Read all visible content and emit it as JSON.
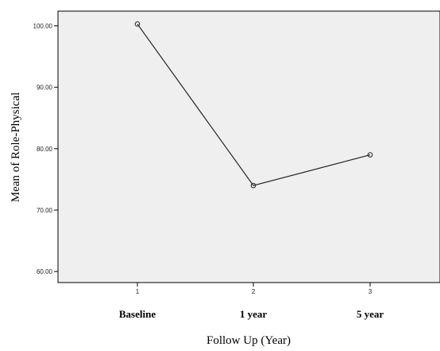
{
  "chart_data": {
    "type": "line",
    "title": "",
    "xlabel": "Follow Up (Year)",
    "ylabel": "Mean of Role-Physical",
    "categories": [
      "Baseline",
      "1 year",
      "5 year"
    ],
    "category_tick_marks": [
      "1",
      "2",
      "3"
    ],
    "series": [
      {
        "values": [
          100.3,
          74.0,
          79.0
        ]
      }
    ],
    "y_ticks": [
      60,
      70,
      80,
      90,
      100
    ],
    "y_tick_labels": [
      "60.00",
      "70.00",
      "80.00",
      "90.00",
      "100.00"
    ],
    "ylim": [
      58.2,
      102.4
    ],
    "grid": false,
    "plot_background": "#efefef",
    "line_color": "#222222",
    "marker": "open-circle"
  }
}
